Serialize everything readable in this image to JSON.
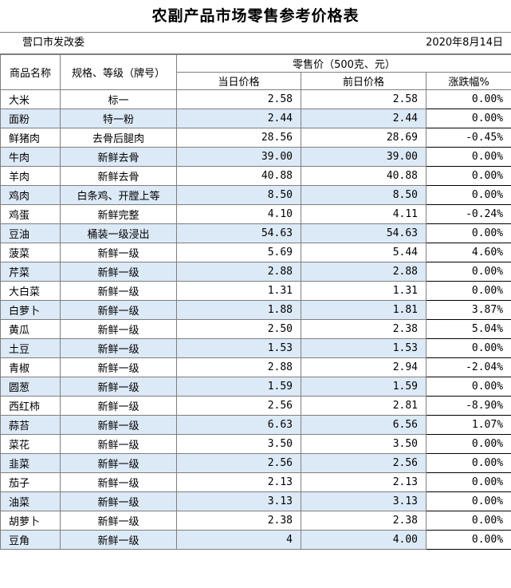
{
  "title": "农副产品市场零售参考价格表",
  "org": "营口市发改委",
  "date": "2020年8月14日",
  "headers": {
    "name": "商品名称",
    "spec": "规格、等级（牌号）",
    "price_group": "零售价（500克、元）",
    "today": "当日价格",
    "prev": "前日价格",
    "change": "涨跌幅%"
  },
  "rows": [
    {
      "name": "大米",
      "spec": "标一",
      "today": "2.58",
      "prev": "2.58",
      "change": "0.00%"
    },
    {
      "name": "面粉",
      "spec": "特一粉",
      "today": "2.44",
      "prev": "2.44",
      "change": "0.00%"
    },
    {
      "name": "鲜猪肉",
      "spec": "去骨后腿肉",
      "today": "28.56",
      "prev": "28.69",
      "change": "-0.45%"
    },
    {
      "name": "牛肉",
      "spec": "新鲜去骨",
      "today": "39.00",
      "prev": "39.00",
      "change": "0.00%"
    },
    {
      "name": "羊肉",
      "spec": "新鲜去骨",
      "today": "40.88",
      "prev": "40.88",
      "change": "0.00%"
    },
    {
      "name": "鸡肉",
      "spec": "白条鸡、开膛上等",
      "today": "8.50",
      "prev": "8.50",
      "change": "0.00%"
    },
    {
      "name": "鸡蛋",
      "spec": "新鲜完整",
      "today": "4.10",
      "prev": "4.11",
      "change": "-0.24%"
    },
    {
      "name": "豆油",
      "spec": "桶装一级浸出",
      "today": "54.63",
      "prev": "54.63",
      "change": "0.00%"
    },
    {
      "name": "菠菜",
      "spec": "新鲜一级",
      "today": "5.69",
      "prev": "5.44",
      "change": "4.60%"
    },
    {
      "name": "芹菜",
      "spec": "新鲜一级",
      "today": "2.88",
      "prev": "2.88",
      "change": "0.00%"
    },
    {
      "name": "大白菜",
      "spec": "新鲜一级",
      "today": "1.31",
      "prev": "1.31",
      "change": "0.00%"
    },
    {
      "name": "白萝卜",
      "spec": "新鲜一级",
      "today": "1.88",
      "prev": "1.81",
      "change": "3.87%"
    },
    {
      "name": "黄瓜",
      "spec": "新鲜一级",
      "today": "2.50",
      "prev": "2.38",
      "change": "5.04%"
    },
    {
      "name": "土豆",
      "spec": "新鲜一级",
      "today": "1.53",
      "prev": "1.53",
      "change": "0.00%"
    },
    {
      "name": "青椒",
      "spec": "新鲜一级",
      "today": "2.88",
      "prev": "2.94",
      "change": "-2.04%"
    },
    {
      "name": "圆葱",
      "spec": "新鲜一级",
      "today": "1.59",
      "prev": "1.59",
      "change": "0.00%"
    },
    {
      "name": "西红柿",
      "spec": "新鲜一级",
      "today": "2.56",
      "prev": "2.81",
      "change": "-8.90%"
    },
    {
      "name": "蒜苔",
      "spec": "新鲜一级",
      "today": "6.63",
      "prev": "6.56",
      "change": "1.07%"
    },
    {
      "name": "菜花",
      "spec": "新鲜一级",
      "today": "3.50",
      "prev": "3.50",
      "change": "0.00%"
    },
    {
      "name": "韭菜",
      "spec": "新鲜一级",
      "today": "2.56",
      "prev": "2.56",
      "change": "0.00%"
    },
    {
      "name": "茄子",
      "spec": "新鲜一级",
      "today": "2.13",
      "prev": "2.13",
      "change": "0.00%"
    },
    {
      "name": "油菜",
      "spec": "新鲜一级",
      "today": "3.13",
      "prev": "3.13",
      "change": "0.00%"
    },
    {
      "name": "胡萝卜",
      "spec": "新鲜一级",
      "today": "2.38",
      "prev": "2.38",
      "change": "0.00%"
    },
    {
      "name": "豆角",
      "spec": "新鲜一级",
      "today": "4",
      "prev": "4.00",
      "change": "0.00%"
    }
  ]
}
